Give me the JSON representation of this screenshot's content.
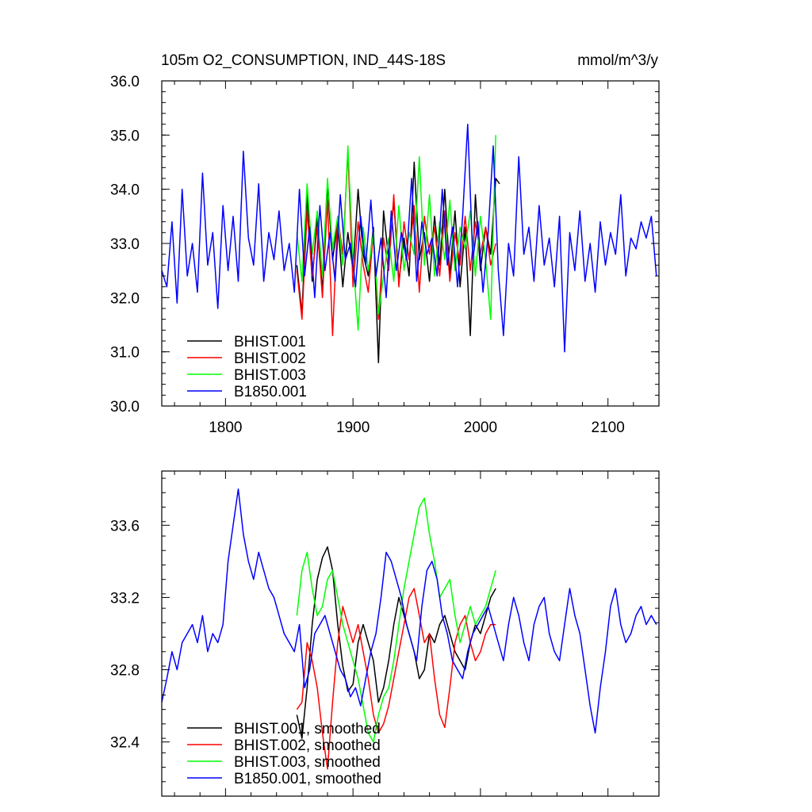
{
  "chart_data": [
    {
      "type": "line",
      "title": "105m O2_CONSUMPTION, IND_44S-18S",
      "units": "mmol/m^3/y",
      "xlim": [
        1750,
        2140
      ],
      "ylim": [
        30.0,
        36.0
      ],
      "xticks": [
        1800,
        1900,
        2000,
        2100
      ],
      "xtick_labels": [
        "1800",
        "1900",
        "2000",
        "2100"
      ],
      "yticks": [
        30.0,
        31.0,
        32.0,
        33.0,
        34.0,
        35.0,
        36.0
      ],
      "ytick_labels": [
        "30.0",
        "31.0",
        "32.0",
        "33.0",
        "34.0",
        "35.0",
        "36.0"
      ],
      "legend_position": "lower-left",
      "series": [
        {
          "name": "BHIST.001",
          "color": "#000000",
          "x": [
            1856,
            1860,
            1864,
            1868,
            1872,
            1876,
            1880,
            1884,
            1888,
            1892,
            1896,
            1900,
            1904,
            1908,
            1912,
            1916,
            1920,
            1924,
            1928,
            1932,
            1936,
            1940,
            1944,
            1948,
            1952,
            1956,
            1960,
            1964,
            1968,
            1972,
            1976,
            1980,
            1984,
            1988,
            1992,
            1996,
            2000,
            2004,
            2008,
            2012,
            2015
          ],
          "y": [
            32.6,
            31.7,
            33.9,
            32.3,
            33.5,
            32.1,
            34.1,
            32.7,
            33.4,
            32.2,
            33.2,
            32.5,
            34.0,
            32.8,
            32.4,
            33.3,
            30.8,
            33.6,
            32.7,
            33.8,
            32.3,
            33.1,
            32.4,
            34.5,
            32.7,
            33.2,
            32.3,
            33.5,
            32.6,
            34.0,
            32.4,
            33.6,
            32.2,
            33.3,
            31.3,
            33.9,
            32.5,
            33.3,
            32.8,
            34.2,
            34.1
          ]
        },
        {
          "name": "BHIST.002",
          "color": "#ff0000",
          "x": [
            1856,
            1860,
            1864,
            1868,
            1872,
            1876,
            1880,
            1884,
            1888,
            1892,
            1896,
            1900,
            1904,
            1908,
            1912,
            1916,
            1920,
            1924,
            1928,
            1932,
            1936,
            1940,
            1944,
            1948,
            1952,
            1956,
            1960,
            1964,
            1968,
            1972,
            1976,
            1980,
            1984,
            1988,
            1992,
            1996,
            2000,
            2004,
            2008,
            2012
          ],
          "y": [
            32.5,
            31.6,
            33.6,
            32.4,
            33.3,
            32.0,
            33.8,
            31.3,
            33.5,
            32.8,
            34.7,
            32.2,
            33.4,
            32.6,
            32.1,
            33.2,
            31.6,
            33.1,
            32.5,
            33.9,
            32.2,
            33.4,
            32.7,
            33.7,
            32.1,
            33.5,
            32.8,
            33.3,
            32.4,
            33.6,
            32.3,
            33.2,
            32.6,
            33.5,
            32.5,
            33.4,
            32.8,
            33.3,
            32.6,
            33.0
          ]
        },
        {
          "name": "BHIST.003",
          "color": "#00ff00",
          "x": [
            1856,
            1860,
            1864,
            1868,
            1872,
            1876,
            1880,
            1884,
            1888,
            1892,
            1896,
            1900,
            1904,
            1908,
            1912,
            1916,
            1920,
            1924,
            1928,
            1932,
            1936,
            1940,
            1944,
            1948,
            1952,
            1956,
            1960,
            1964,
            1968,
            1972,
            1976,
            1980,
            1984,
            1988,
            1992,
            1996,
            2000,
            2004,
            2008,
            2012
          ],
          "y": [
            33.2,
            32.3,
            34.1,
            32.8,
            33.6,
            32.4,
            34.2,
            32.9,
            33.5,
            32.6,
            34.8,
            32.7,
            31.4,
            33.3,
            32.5,
            33.2,
            31.7,
            32.4,
            33.1,
            32.3,
            33.7,
            32.5,
            33.2,
            32.8,
            34.6,
            32.6,
            33.9,
            32.4,
            33.4,
            32.7,
            33.8,
            32.5,
            33.3,
            32.9,
            33.6,
            32.4,
            33.5,
            32.7,
            31.6,
            35.0
          ]
        },
        {
          "name": "B1850.001",
          "color": "#0000ff",
          "x": [
            1750,
            1754,
            1758,
            1762,
            1766,
            1770,
            1774,
            1778,
            1782,
            1786,
            1790,
            1794,
            1798,
            1802,
            1806,
            1810,
            1814,
            1818,
            1822,
            1826,
            1830,
            1834,
            1838,
            1842,
            1846,
            1850,
            1854,
            1858,
            1862,
            1866,
            1870,
            1874,
            1878,
            1882,
            1886,
            1890,
            1894,
            1898,
            1902,
            1906,
            1910,
            1914,
            1918,
            1922,
            1926,
            1930,
            1934,
            1938,
            1942,
            1946,
            1950,
            1954,
            1958,
            1962,
            1966,
            1970,
            1974,
            1978,
            1982,
            1986,
            1990,
            1994,
            1998,
            2002,
            2006,
            2010,
            2014,
            2018,
            2022,
            2026,
            2030,
            2034,
            2038,
            2042,
            2046,
            2050,
            2054,
            2058,
            2062,
            2066,
            2070,
            2074,
            2078,
            2082,
            2086,
            2090,
            2094,
            2098,
            2102,
            2106,
            2110,
            2114,
            2118,
            2122,
            2126,
            2130,
            2134,
            2138
          ],
          "y": [
            32.5,
            32.2,
            33.4,
            31.9,
            34.0,
            32.4,
            33.0,
            32.1,
            34.3,
            32.6,
            33.2,
            31.8,
            33.7,
            32.5,
            33.5,
            32.3,
            34.7,
            33.1,
            32.6,
            34.1,
            32.3,
            33.2,
            32.7,
            33.6,
            32.5,
            33.0,
            32.1,
            34.0,
            32.4,
            33.3,
            32.0,
            33.7,
            32.5,
            33.2,
            32.3,
            33.9,
            32.7,
            33.0,
            32.2,
            33.5,
            32.6,
            33.8,
            32.4,
            33.1,
            32.0,
            33.6,
            32.5,
            33.2,
            32.7,
            34.2,
            32.3,
            33.4,
            32.8,
            33.1,
            32.4,
            34.0,
            32.6,
            33.3,
            32.2,
            33.5,
            35.2,
            32.7,
            33.4,
            32.1,
            33.2,
            34.8,
            32.5,
            31.3,
            33.0,
            32.4,
            34.6,
            32.8,
            33.3,
            32.3,
            33.7,
            32.6,
            33.1,
            32.2,
            33.5,
            31.0,
            33.2,
            32.5,
            33.6,
            32.3,
            33.0,
            32.1,
            33.4,
            32.6,
            33.2,
            32.8,
            33.9,
            32.4,
            33.1,
            32.9,
            33.4,
            33.1,
            33.5,
            32.4
          ]
        }
      ]
    },
    {
      "type": "line",
      "title": "",
      "xlim": [
        1750,
        2140
      ],
      "ylim": [
        32.1,
        33.9
      ],
      "xticks": [
        1800,
        1900,
        2000,
        2100
      ],
      "yticks": [
        32.4,
        32.8,
        33.2,
        33.6
      ],
      "ytick_labels": [
        "32.4",
        "32.8",
        "33.2",
        "33.6"
      ],
      "legend_position": "lower-left",
      "series": [
        {
          "name": "BHIST.001, smoothed",
          "color": "#000000",
          "x": [
            1856,
            1860,
            1864,
            1868,
            1872,
            1876,
            1880,
            1884,
            1888,
            1892,
            1896,
            1900,
            1904,
            1908,
            1912,
            1916,
            1920,
            1924,
            1928,
            1932,
            1936,
            1940,
            1944,
            1948,
            1952,
            1956,
            1960,
            1964,
            1968,
            1972,
            1976,
            1980,
            1984,
            1988,
            1992,
            1996,
            2000,
            2004,
            2008,
            2012
          ],
          "y": [
            32.55,
            32.42,
            32.7,
            33.05,
            33.3,
            33.42,
            33.48,
            33.35,
            33.05,
            32.82,
            32.68,
            32.72,
            32.95,
            33.05,
            32.95,
            32.85,
            32.62,
            32.7,
            32.85,
            33.05,
            33.2,
            33.1,
            33.0,
            32.9,
            32.75,
            32.8,
            33.0,
            32.95,
            33.05,
            33.1,
            33.0,
            32.9,
            32.85,
            32.8,
            32.95,
            33.05,
            33.0,
            33.1,
            33.2,
            33.25
          ]
        },
        {
          "name": "BHIST.002, smoothed",
          "color": "#ff0000",
          "x": [
            1856,
            1860,
            1864,
            1868,
            1872,
            1876,
            1880,
            1884,
            1888,
            1892,
            1896,
            1900,
            1904,
            1908,
            1912,
            1916,
            1920,
            1924,
            1928,
            1932,
            1936,
            1940,
            1944,
            1948,
            1952,
            1956,
            1960,
            1964,
            1968,
            1972,
            1976,
            1980,
            1984,
            1988,
            1992,
            1996,
            2000,
            2004,
            2008,
            2012
          ],
          "y": [
            32.58,
            32.62,
            32.95,
            32.85,
            32.7,
            32.45,
            32.25,
            32.62,
            32.95,
            33.15,
            33.05,
            32.95,
            33.05,
            32.9,
            32.75,
            32.55,
            32.45,
            32.5,
            32.6,
            32.75,
            32.9,
            33.05,
            33.2,
            33.25,
            33.1,
            32.95,
            33.0,
            32.75,
            32.55,
            32.48,
            32.7,
            32.95,
            33.05,
            33.1,
            32.95,
            32.85,
            32.9,
            33.0,
            33.05,
            33.05
          ]
        },
        {
          "name": "BHIST.003, smoothed",
          "color": "#00ff00",
          "x": [
            1856,
            1860,
            1864,
            1868,
            1872,
            1876,
            1880,
            1884,
            1888,
            1892,
            1896,
            1900,
            1904,
            1908,
            1912,
            1916,
            1920,
            1924,
            1928,
            1932,
            1936,
            1940,
            1944,
            1948,
            1952,
            1956,
            1960,
            1964,
            1968,
            1972,
            1976,
            1980,
            1984,
            1988,
            1992,
            1996,
            2000,
            2004,
            2008,
            2012
          ],
          "y": [
            33.1,
            33.35,
            33.45,
            33.25,
            33.1,
            33.15,
            33.3,
            33.35,
            33.2,
            33.05,
            32.95,
            32.85,
            32.75,
            32.6,
            32.45,
            32.4,
            32.55,
            32.65,
            32.7,
            32.85,
            33.05,
            33.25,
            33.4,
            33.55,
            33.7,
            33.75,
            33.55,
            33.4,
            33.2,
            33.25,
            33.3,
            33.1,
            32.95,
            33.05,
            33.15,
            33.05,
            33.1,
            33.15,
            33.25,
            33.35
          ]
        },
        {
          "name": "B1850.001, smoothed",
          "color": "#0000ff",
          "x": [
            1750,
            1754,
            1758,
            1762,
            1766,
            1770,
            1774,
            1778,
            1782,
            1786,
            1790,
            1794,
            1798,
            1802,
            1806,
            1810,
            1814,
            1818,
            1822,
            1826,
            1830,
            1834,
            1838,
            1842,
            1846,
            1850,
            1854,
            1858,
            1862,
            1866,
            1870,
            1874,
            1878,
            1882,
            1886,
            1890,
            1894,
            1898,
            1902,
            1906,
            1910,
            1914,
            1918,
            1922,
            1926,
            1930,
            1934,
            1938,
            1942,
            1946,
            1950,
            1954,
            1958,
            1962,
            1966,
            1970,
            1974,
            1978,
            1982,
            1986,
            1990,
            1994,
            1998,
            2002,
            2006,
            2010,
            2014,
            2018,
            2022,
            2026,
            2030,
            2034,
            2038,
            2042,
            2046,
            2050,
            2054,
            2058,
            2062,
            2066,
            2070,
            2074,
            2078,
            2082,
            2086,
            2090,
            2094,
            2098,
            2102,
            2106,
            2110,
            2114,
            2118,
            2122,
            2126,
            2130,
            2134,
            2138
          ],
          "y": [
            32.62,
            32.75,
            32.9,
            32.8,
            32.95,
            33.0,
            33.05,
            32.95,
            33.1,
            32.9,
            33.0,
            32.95,
            33.05,
            33.4,
            33.6,
            33.8,
            33.55,
            33.4,
            33.3,
            33.45,
            33.35,
            33.25,
            33.2,
            33.1,
            33.0,
            32.95,
            32.9,
            33.05,
            32.7,
            32.8,
            33.0,
            33.05,
            33.1,
            33.0,
            32.9,
            32.8,
            32.75,
            32.65,
            32.7,
            32.6,
            32.75,
            32.9,
            33.0,
            33.2,
            33.45,
            33.4,
            33.3,
            33.2,
            33.05,
            32.95,
            32.85,
            33.15,
            33.35,
            33.4,
            33.3,
            33.1,
            33.0,
            32.85,
            32.8,
            32.75,
            32.9,
            33.0,
            33.05,
            33.1,
            33.15,
            33.05,
            32.95,
            32.85,
            33.05,
            33.2,
            33.1,
            32.95,
            32.85,
            33.05,
            33.15,
            33.2,
            33.0,
            32.9,
            32.85,
            33.05,
            33.25,
            33.1,
            33.0,
            32.8,
            32.6,
            32.45,
            32.7,
            32.9,
            33.15,
            33.25,
            33.05,
            32.95,
            33.0,
            33.1,
            33.15,
            33.05,
            33.1,
            33.05
          ]
        }
      ]
    }
  ]
}
